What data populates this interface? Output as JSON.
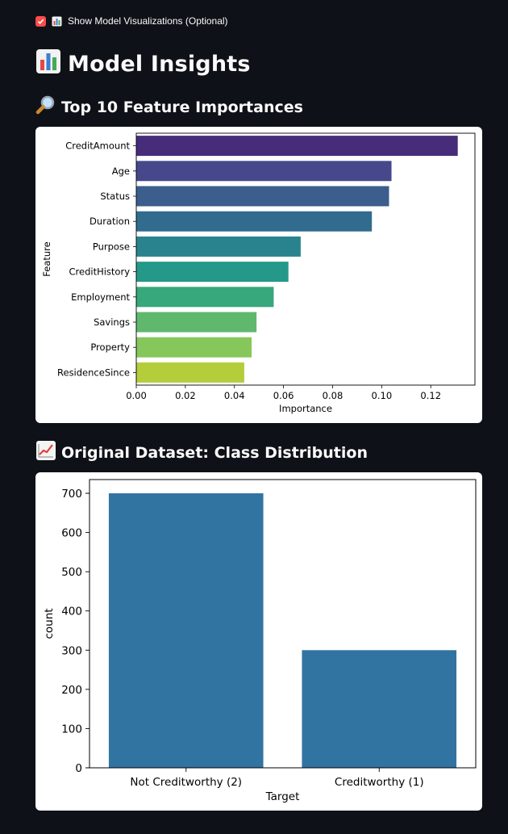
{
  "controls": {
    "show_viz_label": "Show Model Visualizations (Optional)",
    "show_viz_checked": true,
    "checkbox_color": "#ff4b4b"
  },
  "page": {
    "title": "Model Insights",
    "title_icon": "bar-chart-icon"
  },
  "sections": {
    "importance_title": "Top 10 Feature Importances",
    "importance_icon": "magnifier-icon",
    "distribution_title": "Original Dataset: Class Distribution",
    "distribution_icon": "chart-increasing-icon"
  },
  "chart_data": [
    {
      "type": "bar",
      "orientation": "horizontal",
      "categories": [
        "CreditAmount",
        "Age",
        "Status",
        "Duration",
        "Purpose",
        "CreditHistory",
        "Employment",
        "Savings",
        "Property",
        "ResidenceSince"
      ],
      "values": [
        0.131,
        0.104,
        0.103,
        0.096,
        0.067,
        0.062,
        0.056,
        0.049,
        0.047,
        0.044
      ],
      "xlabel": "Importance",
      "ylabel": "Feature",
      "xlim": [
        0,
        0.138
      ],
      "xticks": [
        "0.00",
        "0.02",
        "0.04",
        "0.06",
        "0.08",
        "0.10",
        "0.12"
      ],
      "xtick_values": [
        0,
        0.02,
        0.04,
        0.06,
        0.08,
        0.1,
        0.12
      ],
      "palette": "viridis",
      "colors": [
        "#472c7a",
        "#46488b",
        "#3b5e8c",
        "#316c8e",
        "#29838e",
        "#24998a",
        "#37a77c",
        "#60b86d",
        "#85c75a",
        "#b4cd3a"
      ],
      "grid": false
    },
    {
      "type": "bar",
      "categories": [
        "Not Creditworthy (2)",
        "Creditworthy (1)"
      ],
      "values": [
        700,
        300
      ],
      "xlabel": "Target",
      "ylabel": "count",
      "ylim": [
        0,
        735
      ],
      "yticks": [
        "0",
        "100",
        "200",
        "300",
        "400",
        "500",
        "600",
        "700"
      ],
      "ytick_values": [
        0,
        100,
        200,
        300,
        400,
        500,
        600,
        700
      ],
      "color": "#3274a1",
      "grid": false
    }
  ]
}
